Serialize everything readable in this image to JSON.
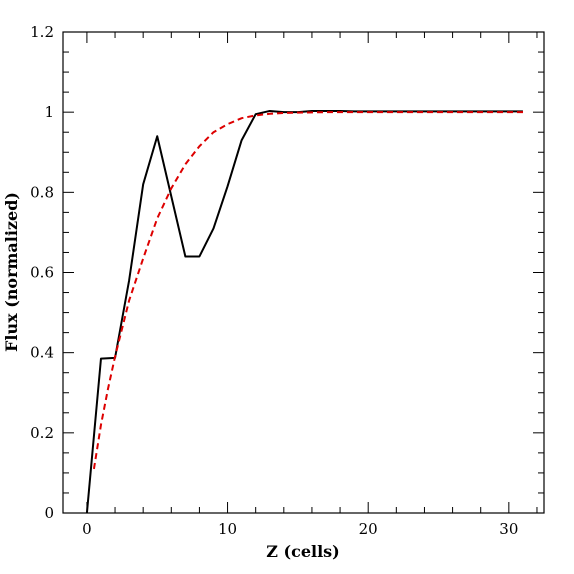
{
  "chart_data": {
    "type": "line",
    "title": "",
    "xlabel": "Z (cells)",
    "ylabel": "Flux (normalized)",
    "xlim": [
      -1.7,
      32.5
    ],
    "ylim": [
      0,
      1.2
    ],
    "x_ticks": [
      0,
      10,
      20,
      30
    ],
    "x_tick_labels": [
      "0",
      "10",
      "20",
      "30"
    ],
    "y_ticks": [
      0,
      0.2,
      0.4,
      0.6,
      0.8,
      1,
      1.2
    ],
    "y_tick_labels": [
      "0",
      "0.2",
      "0.4",
      "0.6",
      "0.8",
      "1",
      "1.2"
    ],
    "grid": false,
    "legend": "none",
    "series": [
      {
        "color": "#000000",
        "style": "solid",
        "x": [
          0,
          1,
          2,
          3,
          4,
          5,
          6,
          7,
          8,
          9,
          10,
          11,
          12,
          13,
          14,
          15,
          16,
          17,
          18,
          19,
          20,
          21,
          22,
          23,
          24,
          25,
          26,
          27,
          28,
          29,
          30,
          31
        ],
        "y": [
          0,
          0.385,
          0.387,
          0.58,
          0.82,
          0.94,
          0.79,
          0.64,
          0.64,
          0.71,
          0.815,
          0.93,
          0.995,
          1.003,
          1.0,
          1.0,
          1.003,
          1.003,
          1.003,
          1.002,
          1.002,
          1.002,
          1.002,
          1.002,
          1.002,
          1.002,
          1.002,
          1.002,
          1.002,
          1.002,
          1.002,
          1.002
        ]
      },
      {
        "color": "#dd0000",
        "style": "dashed",
        "x": [
          0.5,
          1,
          1.5,
          2,
          3,
          4,
          5,
          6,
          7,
          8,
          9,
          10,
          11,
          12,
          13,
          14,
          15,
          17,
          20,
          25,
          31.2
        ],
        "y": [
          0.11,
          0.22,
          0.31,
          0.39,
          0.53,
          0.635,
          0.735,
          0.81,
          0.87,
          0.915,
          0.95,
          0.97,
          0.985,
          0.992,
          0.996,
          0.998,
          0.999,
          1.0,
          1.0,
          1.0,
          1.0
        ]
      }
    ]
  }
}
